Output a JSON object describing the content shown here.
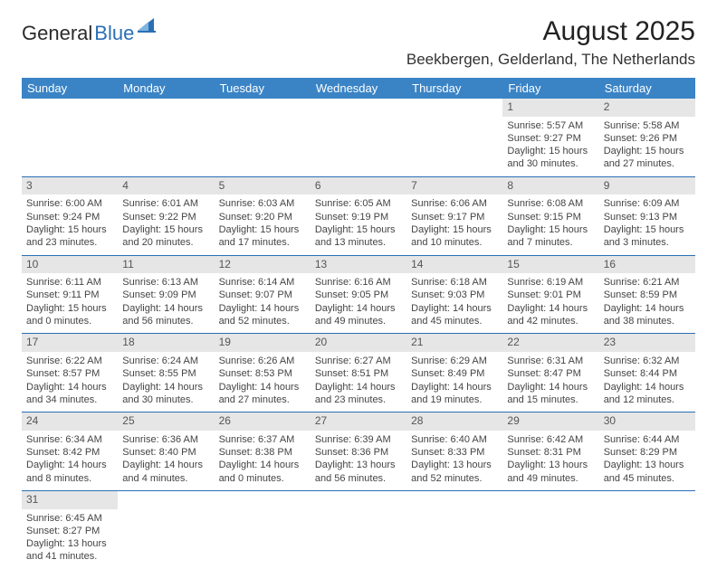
{
  "brand": {
    "part1": "General",
    "part2": "Blue"
  },
  "title": "August 2025",
  "location": "Beekbergen, Gelderland, The Netherlands",
  "colors": {
    "header_bg": "#3a84c6",
    "header_text": "#ffffff",
    "daynum_bg": "#e6e6e6",
    "row_border": "#2a6fb5",
    "text": "#444444",
    "brand_blue": "#2a6fb5"
  },
  "dayNames": [
    "Sunday",
    "Monday",
    "Tuesday",
    "Wednesday",
    "Thursday",
    "Friday",
    "Saturday"
  ],
  "firstWeekday": 5,
  "daysInMonth": 31,
  "days": {
    "1": {
      "sunrise": "5:57 AM",
      "sunset": "9:27 PM",
      "daylight": "15 hours and 30 minutes."
    },
    "2": {
      "sunrise": "5:58 AM",
      "sunset": "9:26 PM",
      "daylight": "15 hours and 27 minutes."
    },
    "3": {
      "sunrise": "6:00 AM",
      "sunset": "9:24 PM",
      "daylight": "15 hours and 23 minutes."
    },
    "4": {
      "sunrise": "6:01 AM",
      "sunset": "9:22 PM",
      "daylight": "15 hours and 20 minutes."
    },
    "5": {
      "sunrise": "6:03 AM",
      "sunset": "9:20 PM",
      "daylight": "15 hours and 17 minutes."
    },
    "6": {
      "sunrise": "6:05 AM",
      "sunset": "9:19 PM",
      "daylight": "15 hours and 13 minutes."
    },
    "7": {
      "sunrise": "6:06 AM",
      "sunset": "9:17 PM",
      "daylight": "15 hours and 10 minutes."
    },
    "8": {
      "sunrise": "6:08 AM",
      "sunset": "9:15 PM",
      "daylight": "15 hours and 7 minutes."
    },
    "9": {
      "sunrise": "6:09 AM",
      "sunset": "9:13 PM",
      "daylight": "15 hours and 3 minutes."
    },
    "10": {
      "sunrise": "6:11 AM",
      "sunset": "9:11 PM",
      "daylight": "15 hours and 0 minutes."
    },
    "11": {
      "sunrise": "6:13 AM",
      "sunset": "9:09 PM",
      "daylight": "14 hours and 56 minutes."
    },
    "12": {
      "sunrise": "6:14 AM",
      "sunset": "9:07 PM",
      "daylight": "14 hours and 52 minutes."
    },
    "13": {
      "sunrise": "6:16 AM",
      "sunset": "9:05 PM",
      "daylight": "14 hours and 49 minutes."
    },
    "14": {
      "sunrise": "6:18 AM",
      "sunset": "9:03 PM",
      "daylight": "14 hours and 45 minutes."
    },
    "15": {
      "sunrise": "6:19 AM",
      "sunset": "9:01 PM",
      "daylight": "14 hours and 42 minutes."
    },
    "16": {
      "sunrise": "6:21 AM",
      "sunset": "8:59 PM",
      "daylight": "14 hours and 38 minutes."
    },
    "17": {
      "sunrise": "6:22 AM",
      "sunset": "8:57 PM",
      "daylight": "14 hours and 34 minutes."
    },
    "18": {
      "sunrise": "6:24 AM",
      "sunset": "8:55 PM",
      "daylight": "14 hours and 30 minutes."
    },
    "19": {
      "sunrise": "6:26 AM",
      "sunset": "8:53 PM",
      "daylight": "14 hours and 27 minutes."
    },
    "20": {
      "sunrise": "6:27 AM",
      "sunset": "8:51 PM",
      "daylight": "14 hours and 23 minutes."
    },
    "21": {
      "sunrise": "6:29 AM",
      "sunset": "8:49 PM",
      "daylight": "14 hours and 19 minutes."
    },
    "22": {
      "sunrise": "6:31 AM",
      "sunset": "8:47 PM",
      "daylight": "14 hours and 15 minutes."
    },
    "23": {
      "sunrise": "6:32 AM",
      "sunset": "8:44 PM",
      "daylight": "14 hours and 12 minutes."
    },
    "24": {
      "sunrise": "6:34 AM",
      "sunset": "8:42 PM",
      "daylight": "14 hours and 8 minutes."
    },
    "25": {
      "sunrise": "6:36 AM",
      "sunset": "8:40 PM",
      "daylight": "14 hours and 4 minutes."
    },
    "26": {
      "sunrise": "6:37 AM",
      "sunset": "8:38 PM",
      "daylight": "14 hours and 0 minutes."
    },
    "27": {
      "sunrise": "6:39 AM",
      "sunset": "8:36 PM",
      "daylight": "13 hours and 56 minutes."
    },
    "28": {
      "sunrise": "6:40 AM",
      "sunset": "8:33 PM",
      "daylight": "13 hours and 52 minutes."
    },
    "29": {
      "sunrise": "6:42 AM",
      "sunset": "8:31 PM",
      "daylight": "13 hours and 49 minutes."
    },
    "30": {
      "sunrise": "6:44 AM",
      "sunset": "8:29 PM",
      "daylight": "13 hours and 45 minutes."
    },
    "31": {
      "sunrise": "6:45 AM",
      "sunset": "8:27 PM",
      "daylight": "13 hours and 41 minutes."
    }
  },
  "labels": {
    "sunrise": "Sunrise:",
    "sunset": "Sunset:",
    "daylight": "Daylight:"
  }
}
